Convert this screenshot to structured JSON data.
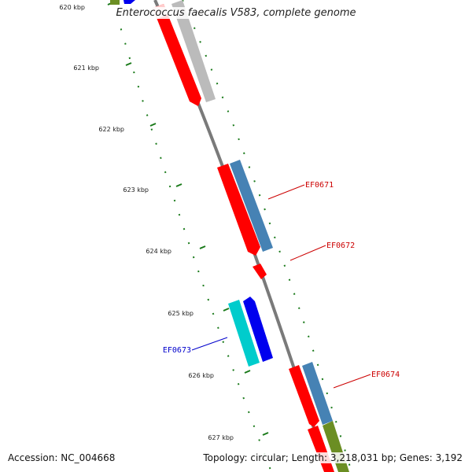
{
  "title": "Enterococcus faecalis V583, complete genome",
  "accession": "Accession: NC_004668",
  "topology": "Topology: circular; Length: 3,218,031 bp; Genes: 3,192",
  "colors": {
    "backbone": "#777777",
    "tick": "#1a7a1a",
    "forward_red": "#ff0000",
    "forward_gray": "#bbbbbb",
    "steel_blue": "#4682b4",
    "blue": "#0000ee",
    "cyan": "#00cccc",
    "olive": "#6b8e23",
    "pink": "#ffcccc"
  },
  "ticks": [
    {
      "label": "620 kbp"
    },
    {
      "label": "621 kbp"
    },
    {
      "label": "622 kbp"
    },
    {
      "label": "623 kbp"
    },
    {
      "label": "624 kbp"
    },
    {
      "label": "625 kbp"
    },
    {
      "label": "626 kbp"
    },
    {
      "label": "627 kbp"
    }
  ],
  "genes": [
    {
      "label": "EF0671",
      "label_color": "#cc0000"
    },
    {
      "label": "EF0672",
      "label_color": "#cc0000"
    },
    {
      "label": "EF0673",
      "label_color": "#0000cc"
    },
    {
      "label": "EF0674",
      "label_color": "#cc0000"
    }
  ]
}
